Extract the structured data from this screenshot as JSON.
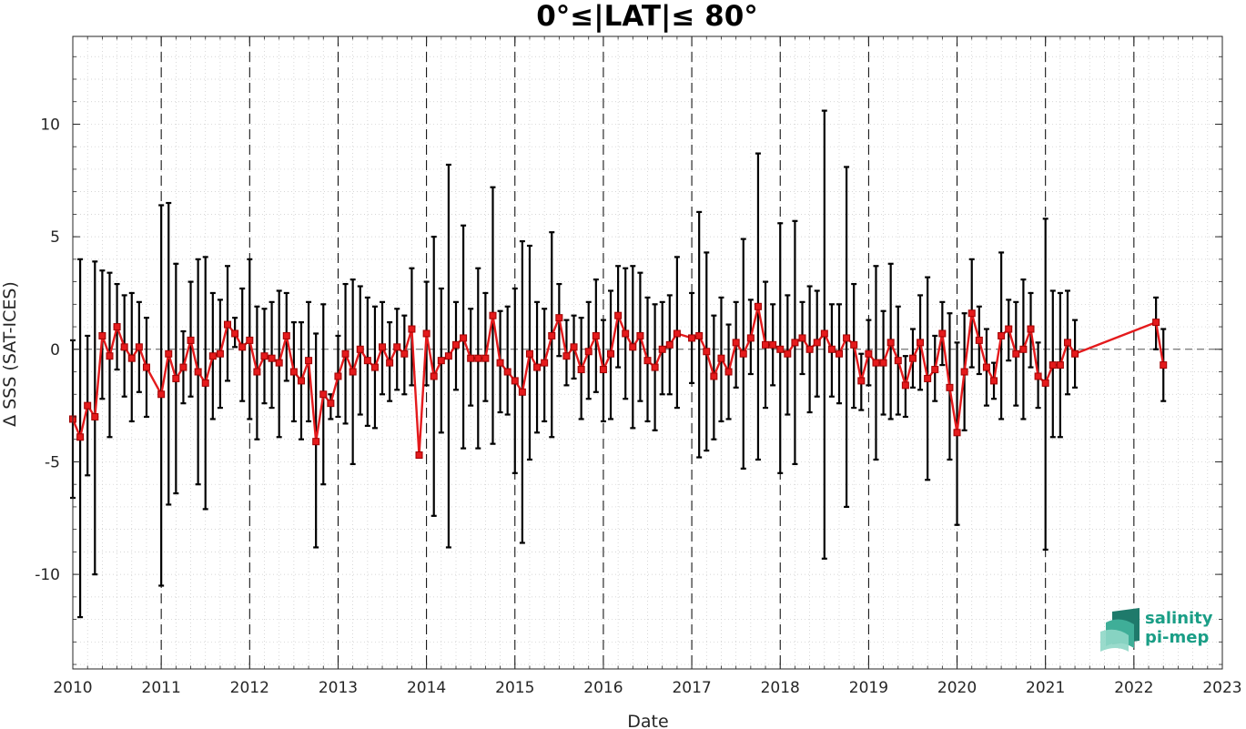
{
  "chart_data": {
    "type": "line",
    "title": "0°≤|LAT|≤ 80°",
    "xlabel": "Date",
    "ylabel": "Δ SSS (SAT-ICES)",
    "xlim": [
      "2010-01-01",
      "2023-01-01"
    ],
    "ylim": [
      -14.2,
      13.9
    ],
    "grid": "dotted minor grid",
    "year_separators": "dashed vertical lines at each year",
    "zero_line": "dashed horizontal line at 0",
    "x_ticks": [
      "2010",
      "2011",
      "2012",
      "2013",
      "2014",
      "2015",
      "2016",
      "2017",
      "2018",
      "2019",
      "2020",
      "2021",
      "2022",
      "2023"
    ],
    "y_ticks": [
      "-10",
      "-5",
      "0",
      "5",
      "10"
    ],
    "series": [
      {
        "color": "#e41a1c",
        "marker": "square",
        "errorbar_color": "#000000",
        "points": [
          {
            "date": "2010-01",
            "mean": -3.1,
            "lo": -6.6,
            "hi": 0.4
          },
          {
            "date": "2010-02",
            "mean": -3.9,
            "lo": -11.9,
            "hi": 4.0
          },
          {
            "date": "2010-03",
            "mean": -2.5,
            "lo": -5.6,
            "hi": 0.6
          },
          {
            "date": "2010-04",
            "mean": -3.0,
            "lo": -10.0,
            "hi": 3.9
          },
          {
            "date": "2010-05",
            "mean": 0.6,
            "lo": -2.2,
            "hi": 3.5
          },
          {
            "date": "2010-06",
            "mean": -0.3,
            "lo": -3.9,
            "hi": 3.4
          },
          {
            "date": "2010-07",
            "mean": 1.0,
            "lo": -0.9,
            "hi": 2.9
          },
          {
            "date": "2010-08",
            "mean": 0.1,
            "lo": -2.1,
            "hi": 2.4
          },
          {
            "date": "2010-09",
            "mean": -0.4,
            "lo": -3.2,
            "hi": 2.5
          },
          {
            "date": "2010-10",
            "mean": 0.1,
            "lo": -1.9,
            "hi": 2.1
          },
          {
            "date": "2010-11",
            "mean": -0.8,
            "lo": -3.0,
            "hi": 1.4
          },
          {
            "date": "2011-01",
            "mean": -2.0,
            "lo": -10.5,
            "hi": 6.4
          },
          {
            "date": "2011-02",
            "mean": -0.2,
            "lo": -6.9,
            "hi": 6.5
          },
          {
            "date": "2011-03",
            "mean": -1.3,
            "lo": -6.4,
            "hi": 3.8
          },
          {
            "date": "2011-04",
            "mean": -0.8,
            "lo": -2.4,
            "hi": 0.8
          },
          {
            "date": "2011-05",
            "mean": 0.4,
            "lo": -2.1,
            "hi": 3.0
          },
          {
            "date": "2011-06",
            "mean": -1.0,
            "lo": -6.0,
            "hi": 4.0
          },
          {
            "date": "2011-07",
            "mean": -1.5,
            "lo": -7.1,
            "hi": 4.1
          },
          {
            "date": "2011-08",
            "mean": -0.3,
            "lo": -3.1,
            "hi": 2.5
          },
          {
            "date": "2011-09",
            "mean": -0.2,
            "lo": -2.6,
            "hi": 2.2
          },
          {
            "date": "2011-10",
            "mean": 1.1,
            "lo": -1.4,
            "hi": 3.7
          },
          {
            "date": "2011-11",
            "mean": 0.7,
            "lo": 0.1,
            "hi": 1.4
          },
          {
            "date": "2011-12",
            "mean": 0.1,
            "lo": -2.3,
            "hi": 2.7
          },
          {
            "date": "2012-01",
            "mean": 0.4,
            "lo": -3.1,
            "hi": 4.0
          },
          {
            "date": "2012-02",
            "mean": -1.0,
            "lo": -4.0,
            "hi": 1.9
          },
          {
            "date": "2012-03",
            "mean": -0.3,
            "lo": -2.4,
            "hi": 1.8
          },
          {
            "date": "2012-04",
            "mean": -0.4,
            "lo": -2.6,
            "hi": 2.1
          },
          {
            "date": "2012-05",
            "mean": -0.6,
            "lo": -3.9,
            "hi": 2.6
          },
          {
            "date": "2012-06",
            "mean": 0.6,
            "lo": -1.4,
            "hi": 2.5
          },
          {
            "date": "2012-07",
            "mean": -1.0,
            "lo": -3.2,
            "hi": 1.2
          },
          {
            "date": "2012-08",
            "mean": -1.4,
            "lo": -4.0,
            "hi": 1.2
          },
          {
            "date": "2012-09",
            "mean": -0.5,
            "lo": -3.2,
            "hi": 2.1
          },
          {
            "date": "2012-10",
            "mean": -4.1,
            "lo": -8.8,
            "hi": 0.7
          },
          {
            "date": "2012-11",
            "mean": -2.0,
            "lo": -6.0,
            "hi": 2.0
          },
          {
            "date": "2012-12",
            "mean": -2.4,
            "lo": -3.1,
            "hi": -2.0
          },
          {
            "date": "2013-01",
            "mean": -1.2,
            "lo": -3.0,
            "hi": 0.6
          },
          {
            "date": "2013-02",
            "mean": -0.2,
            "lo": -3.3,
            "hi": 2.9
          },
          {
            "date": "2013-03",
            "mean": -1.0,
            "lo": -5.1,
            "hi": 3.1
          },
          {
            "date": "2013-04",
            "mean": 0.0,
            "lo": -2.9,
            "hi": 2.8
          },
          {
            "date": "2013-05",
            "mean": -0.5,
            "lo": -3.4,
            "hi": 2.3
          },
          {
            "date": "2013-06",
            "mean": -0.8,
            "lo": -3.5,
            "hi": 1.9
          },
          {
            "date": "2013-07",
            "mean": 0.1,
            "lo": -2.0,
            "hi": 2.1
          },
          {
            "date": "2013-08",
            "mean": -0.6,
            "lo": -2.3,
            "hi": 1.2
          },
          {
            "date": "2013-09",
            "mean": 0.1,
            "lo": -1.8,
            "hi": 1.8
          },
          {
            "date": "2013-10",
            "mean": -0.2,
            "lo": -2.0,
            "hi": 1.5
          },
          {
            "date": "2013-11",
            "mean": 0.9,
            "lo": -1.6,
            "hi": 3.6
          },
          {
            "date": "2013-12",
            "mean": -4.7,
            "lo": -4.8,
            "hi": -4.6
          },
          {
            "date": "2014-01",
            "mean": 0.7,
            "lo": -1.6,
            "hi": 3.0
          },
          {
            "date": "2014-02",
            "mean": -1.2,
            "lo": -7.4,
            "hi": 5.0
          },
          {
            "date": "2014-03",
            "mean": -0.5,
            "lo": -3.7,
            "hi": 2.7
          },
          {
            "date": "2014-04",
            "mean": -0.3,
            "lo": -8.8,
            "hi": 8.2
          },
          {
            "date": "2014-05",
            "mean": 0.2,
            "lo": -1.8,
            "hi": 2.1
          },
          {
            "date": "2014-06",
            "mean": 0.5,
            "lo": -4.4,
            "hi": 5.5
          },
          {
            "date": "2014-07",
            "mean": -0.4,
            "lo": -2.5,
            "hi": 1.8
          },
          {
            "date": "2014-08",
            "mean": -0.4,
            "lo": -4.4,
            "hi": 3.6
          },
          {
            "date": "2014-09",
            "mean": -0.4,
            "lo": -2.3,
            "hi": 2.5
          },
          {
            "date": "2014-10",
            "mean": 1.5,
            "lo": -4.2,
            "hi": 7.2
          },
          {
            "date": "2014-11",
            "mean": -0.6,
            "lo": -2.8,
            "hi": 1.7
          },
          {
            "date": "2014-12",
            "mean": -1.0,
            "lo": -2.9,
            "hi": 1.9
          },
          {
            "date": "2015-01",
            "mean": -1.4,
            "lo": -5.5,
            "hi": 2.7
          },
          {
            "date": "2015-02",
            "mean": -1.9,
            "lo": -8.6,
            "hi": 4.8
          },
          {
            "date": "2015-03",
            "mean": -0.2,
            "lo": -4.9,
            "hi": 4.6
          },
          {
            "date": "2015-04",
            "mean": -0.8,
            "lo": -3.7,
            "hi": 2.1
          },
          {
            "date": "2015-05",
            "mean": -0.6,
            "lo": -3.2,
            "hi": 1.8
          },
          {
            "date": "2015-06",
            "mean": 0.6,
            "lo": -3.9,
            "hi": 5.2
          },
          {
            "date": "2015-07",
            "mean": 1.4,
            "lo": -0.3,
            "hi": 2.9
          },
          {
            "date": "2015-08",
            "mean": -0.3,
            "lo": -1.6,
            "hi": 1.3
          },
          {
            "date": "2015-09",
            "mean": 0.1,
            "lo": -1.3,
            "hi": 1.5
          },
          {
            "date": "2015-10",
            "mean": -0.9,
            "lo": -3.1,
            "hi": 1.4
          },
          {
            "date": "2015-11",
            "mean": -0.1,
            "lo": -2.2,
            "hi": 2.1
          },
          {
            "date": "2015-12",
            "mean": 0.6,
            "lo": -1.9,
            "hi": 3.1
          },
          {
            "date": "2016-01",
            "mean": -0.9,
            "lo": -3.2,
            "hi": 1.3
          },
          {
            "date": "2016-02",
            "mean": -0.2,
            "lo": -3.1,
            "hi": 2.6
          },
          {
            "date": "2016-03",
            "mean": 1.5,
            "lo": -0.8,
            "hi": 3.7
          },
          {
            "date": "2016-04",
            "mean": 0.7,
            "lo": -2.2,
            "hi": 3.6
          },
          {
            "date": "2016-05",
            "mean": 0.1,
            "lo": -3.5,
            "hi": 3.7
          },
          {
            "date": "2016-06",
            "mean": 0.6,
            "lo": -2.3,
            "hi": 3.4
          },
          {
            "date": "2016-07",
            "mean": -0.5,
            "lo": -3.2,
            "hi": 2.3
          },
          {
            "date": "2016-08",
            "mean": -0.8,
            "lo": -3.6,
            "hi": 2.0
          },
          {
            "date": "2016-09",
            "mean": 0.0,
            "lo": -2.0,
            "hi": 2.1
          },
          {
            "date": "2016-10",
            "mean": 0.2,
            "lo": -2.0,
            "hi": 2.4
          },
          {
            "date": "2016-11",
            "mean": 0.7,
            "lo": -2.6,
            "hi": 4.1
          },
          {
            "date": "2017-01",
            "mean": 0.5,
            "lo": -1.5,
            "hi": 2.5
          },
          {
            "date": "2017-02",
            "mean": 0.6,
            "lo": -4.8,
            "hi": 6.1
          },
          {
            "date": "2017-03",
            "mean": -0.1,
            "lo": -4.5,
            "hi": 4.3
          },
          {
            "date": "2017-04",
            "mean": -1.2,
            "lo": -4.0,
            "hi": 1.5
          },
          {
            "date": "2017-05",
            "mean": -0.4,
            "lo": -3.2,
            "hi": 2.3
          },
          {
            "date": "2017-06",
            "mean": -1.0,
            "lo": -3.1,
            "hi": 1.1
          },
          {
            "date": "2017-07",
            "mean": 0.3,
            "lo": -1.7,
            "hi": 2.1
          },
          {
            "date": "2017-08",
            "mean": -0.2,
            "lo": -5.3,
            "hi": 4.9
          },
          {
            "date": "2017-09",
            "mean": 0.5,
            "lo": -1.1,
            "hi": 2.2
          },
          {
            "date": "2017-10",
            "mean": 1.9,
            "lo": -4.9,
            "hi": 8.7
          },
          {
            "date": "2017-11",
            "mean": 0.2,
            "lo": -2.6,
            "hi": 3.0
          },
          {
            "date": "2017-12",
            "mean": 0.2,
            "lo": -1.6,
            "hi": 2.0
          },
          {
            "date": "2018-01",
            "mean": 0.0,
            "lo": -5.5,
            "hi": 5.6
          },
          {
            "date": "2018-02",
            "mean": -0.2,
            "lo": -2.9,
            "hi": 2.4
          },
          {
            "date": "2018-03",
            "mean": 0.3,
            "lo": -5.1,
            "hi": 5.7
          },
          {
            "date": "2018-04",
            "mean": 0.5,
            "lo": -1.1,
            "hi": 2.1
          },
          {
            "date": "2018-05",
            "mean": 0.0,
            "lo": -2.8,
            "hi": 2.8
          },
          {
            "date": "2018-06",
            "mean": 0.3,
            "lo": -2.1,
            "hi": 2.6
          },
          {
            "date": "2018-07",
            "mean": 0.7,
            "lo": -9.3,
            "hi": 10.6
          },
          {
            "date": "2018-08",
            "mean": 0.0,
            "lo": -2.1,
            "hi": 2.0
          },
          {
            "date": "2018-09",
            "mean": -0.2,
            "lo": -2.4,
            "hi": 2.0
          },
          {
            "date": "2018-10",
            "mean": 0.5,
            "lo": -7.0,
            "hi": 8.1
          },
          {
            "date": "2018-11",
            "mean": 0.2,
            "lo": -2.6,
            "hi": 2.9
          },
          {
            "date": "2018-12",
            "mean": -1.4,
            "lo": -2.7,
            "hi": -0.2
          },
          {
            "date": "2019-01",
            "mean": -0.2,
            "lo": -1.6,
            "hi": 1.3
          },
          {
            "date": "2019-02",
            "mean": -0.6,
            "lo": -4.9,
            "hi": 3.7
          },
          {
            "date": "2019-03",
            "mean": -0.6,
            "lo": -2.9,
            "hi": 1.7
          },
          {
            "date": "2019-04",
            "mean": 0.3,
            "lo": -3.1,
            "hi": 3.8
          },
          {
            "date": "2019-05",
            "mean": -0.5,
            "lo": -2.9,
            "hi": 1.9
          },
          {
            "date": "2019-06",
            "mean": -1.6,
            "lo": -3.0,
            "hi": -0.3
          },
          {
            "date": "2019-07",
            "mean": -0.4,
            "lo": -1.7,
            "hi": 0.9
          },
          {
            "date": "2019-08",
            "mean": 0.3,
            "lo": -1.8,
            "hi": 2.4
          },
          {
            "date": "2019-09",
            "mean": -1.3,
            "lo": -5.8,
            "hi": 3.2
          },
          {
            "date": "2019-10",
            "mean": -0.9,
            "lo": -2.3,
            "hi": 0.6
          },
          {
            "date": "2019-11",
            "mean": 0.7,
            "lo": -0.7,
            "hi": 2.1
          },
          {
            "date": "2019-12",
            "mean": -1.7,
            "lo": -4.9,
            "hi": 1.6
          },
          {
            "date": "2020-01",
            "mean": -3.7,
            "lo": -7.8,
            "hi": 0.3
          },
          {
            "date": "2020-02",
            "mean": -1.0,
            "lo": -3.6,
            "hi": 1.6
          },
          {
            "date": "2020-03",
            "mean": 1.6,
            "lo": -0.8,
            "hi": 4.0
          },
          {
            "date": "2020-04",
            "mean": 0.4,
            "lo": -1.1,
            "hi": 1.9
          },
          {
            "date": "2020-05",
            "mean": -0.8,
            "lo": -2.5,
            "hi": 0.9
          },
          {
            "date": "2020-06",
            "mean": -1.4,
            "lo": -2.2,
            "hi": -0.6
          },
          {
            "date": "2020-07",
            "mean": 0.6,
            "lo": -3.1,
            "hi": 4.3
          },
          {
            "date": "2020-08",
            "mean": 0.9,
            "lo": -0.5,
            "hi": 2.2
          },
          {
            "date": "2020-09",
            "mean": -0.2,
            "lo": -2.5,
            "hi": 2.1
          },
          {
            "date": "2020-10",
            "mean": 0.0,
            "lo": -3.1,
            "hi": 3.1
          },
          {
            "date": "2020-11",
            "mean": 0.9,
            "lo": -0.8,
            "hi": 2.5
          },
          {
            "date": "2020-12",
            "mean": -1.2,
            "lo": -2.6,
            "hi": 0.3
          },
          {
            "date": "2021-01",
            "mean": -1.5,
            "lo": -8.9,
            "hi": 5.8
          },
          {
            "date": "2021-02",
            "mean": -0.7,
            "lo": -3.9,
            "hi": 2.6
          },
          {
            "date": "2021-03",
            "mean": -0.7,
            "lo": -3.9,
            "hi": 2.5
          },
          {
            "date": "2021-04",
            "mean": 0.3,
            "lo": -2.0,
            "hi": 2.6
          },
          {
            "date": "2021-05",
            "mean": -0.2,
            "lo": -1.7,
            "hi": 1.3
          },
          {
            "date": "2022-04",
            "mean": 1.2,
            "lo": 0.0,
            "hi": 2.3
          },
          {
            "date": "2022-05",
            "mean": -0.7,
            "lo": -2.3,
            "hi": 0.9
          }
        ]
      }
    ]
  },
  "logo": {
    "line1": "salinity",
    "line2": "pi-mep"
  }
}
